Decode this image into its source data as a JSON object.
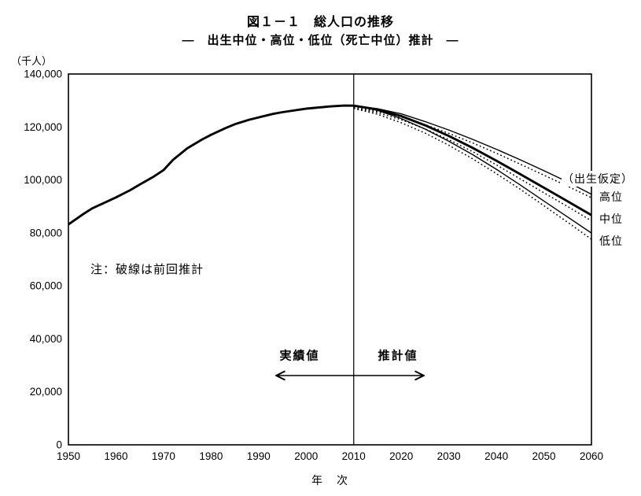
{
  "title": "図１－１　総人口の推移",
  "subtitle": "―　出生中位・高位・低位（死亡中位）推計　―",
  "note": "注：破線は前回推計",
  "y_axis_unit": "（千人）",
  "x_axis_title": "年　次",
  "annotations": {
    "actual_label": "実績値",
    "projection_label": "推計値",
    "assumption_label": "（出生仮定）",
    "series_label_high": "高位",
    "series_label_medium": "中位",
    "series_label_low": "低位"
  },
  "colors": {
    "line": "#000000",
    "background": "#ffffff"
  },
  "chart_data": {
    "type": "line",
    "title": "図１－１　総人口の推移 ― 出生中位・高位・低位（死亡中位）推計 ―",
    "xlabel": "年次",
    "ylabel": "千人",
    "xlim": [
      1950,
      2060
    ],
    "ylim": [
      0,
      140000
    ],
    "grid": false,
    "divider_x": 2010,
    "x_ticks": [
      1950,
      1960,
      1970,
      1980,
      1990,
      2000,
      2010,
      2020,
      2030,
      2040,
      2050,
      2060
    ],
    "x_tick_labels": [
      "1950",
      "1960",
      "1970",
      "1980",
      "1990",
      "2000",
      "2010",
      "2020",
      "2030",
      "2040",
      "2050",
      "2060"
    ],
    "y_ticks": [
      0,
      20000,
      40000,
      60000,
      80000,
      100000,
      120000,
      140000
    ],
    "y_tick_labels": [
      "0",
      "20,000",
      "40,000",
      "60,000",
      "80,000",
      "100,000",
      "120,000",
      "140,000"
    ],
    "series": [
      {
        "key": "prev-high",
        "name": "前回推計（出生高位）",
        "style": "dotted",
        "points": [
          [
            2010,
            127400
          ],
          [
            2015,
            125900
          ],
          [
            2020,
            123800
          ],
          [
            2025,
            120900
          ],
          [
            2030,
            117600
          ],
          [
            2035,
            114000
          ],
          [
            2040,
            110100
          ],
          [
            2045,
            106000
          ],
          [
            2050,
            101800
          ],
          [
            2055,
            97600
          ],
          [
            2060,
            93300
          ]
        ]
      },
      {
        "key": "prev-medium",
        "name": "前回推計（出生中位）",
        "style": "dotted",
        "points": [
          [
            2010,
            127200
          ],
          [
            2015,
            125430
          ],
          [
            2020,
            122740
          ],
          [
            2025,
            119270
          ],
          [
            2030,
            115220
          ],
          [
            2035,
            110680
          ],
          [
            2040,
            105700
          ],
          [
            2045,
            100440
          ],
          [
            2050,
            95150
          ],
          [
            2055,
            89930
          ],
          [
            2060,
            84600
          ]
        ]
      },
      {
        "key": "prev-low",
        "name": "前回推計（出生低位）",
        "style": "dotted",
        "points": [
          [
            2010,
            127000
          ],
          [
            2015,
            124800
          ],
          [
            2020,
            121600
          ],
          [
            2025,
            117700
          ],
          [
            2030,
            113100
          ],
          [
            2035,
            108000
          ],
          [
            2040,
            102400
          ],
          [
            2045,
            96500
          ],
          [
            2050,
            90300
          ],
          [
            2055,
            84000
          ],
          [
            2060,
            77600
          ]
        ]
      },
      {
        "key": "high",
        "name": "出生高位（死亡中位）推計",
        "style": "solid-thin",
        "points": [
          [
            2010,
            128057
          ],
          [
            2015,
            126900
          ],
          [
            2020,
            124950
          ],
          [
            2025,
            122050
          ],
          [
            2030,
            118870
          ],
          [
            2035,
            115320
          ],
          [
            2040,
            111570
          ],
          [
            2045,
            107630
          ],
          [
            2050,
            103540
          ],
          [
            2055,
            99260
          ],
          [
            2060,
            94610
          ]
        ]
      },
      {
        "key": "low",
        "name": "出生低位（死亡中位）推計",
        "style": "solid-thin",
        "points": [
          [
            2010,
            128057
          ],
          [
            2015,
            126260
          ],
          [
            2020,
            123180
          ],
          [
            2025,
            119220
          ],
          [
            2030,
            114630
          ],
          [
            2035,
            109560
          ],
          [
            2040,
            104040
          ],
          [
            2045,
            98160
          ],
          [
            2050,
            92070
          ],
          [
            2055,
            85980
          ],
          [
            2060,
            79970
          ]
        ]
      },
      {
        "key": "medium",
        "name": "出生中位（死亡中位）推計",
        "style": "solid-thick",
        "points": [
          [
            2010,
            128057
          ],
          [
            2015,
            126597
          ],
          [
            2020,
            124100
          ],
          [
            2025,
            120659
          ],
          [
            2030,
            116618
          ],
          [
            2035,
            112124
          ],
          [
            2040,
            107276
          ],
          [
            2045,
            102210
          ],
          [
            2050,
            97076
          ],
          [
            2055,
            91933
          ],
          [
            2060,
            86737
          ]
        ]
      },
      {
        "key": "historical",
        "name": "総人口（実績値）",
        "style": "solid-thick",
        "points": [
          [
            1950,
            83200
          ],
          [
            1953,
            86981
          ],
          [
            1955,
            89276
          ],
          [
            1958,
            91767
          ],
          [
            1960,
            93419
          ],
          [
            1963,
            96156
          ],
          [
            1965,
            98275
          ],
          [
            1968,
            101331
          ],
          [
            1970,
            103720
          ],
          [
            1972,
            107595
          ],
          [
            1975,
            111940
          ],
          [
            1978,
            115190
          ],
          [
            1980,
            117060
          ],
          [
            1983,
            119536
          ],
          [
            1985,
            121049
          ],
          [
            1988,
            122745
          ],
          [
            1990,
            123611
          ],
          [
            1993,
            124938
          ],
          [
            1995,
            125570
          ],
          [
            2000,
            126926
          ],
          [
            2005,
            127768
          ],
          [
            2008,
            128084
          ],
          [
            2010,
            128057
          ]
        ]
      }
    ]
  }
}
